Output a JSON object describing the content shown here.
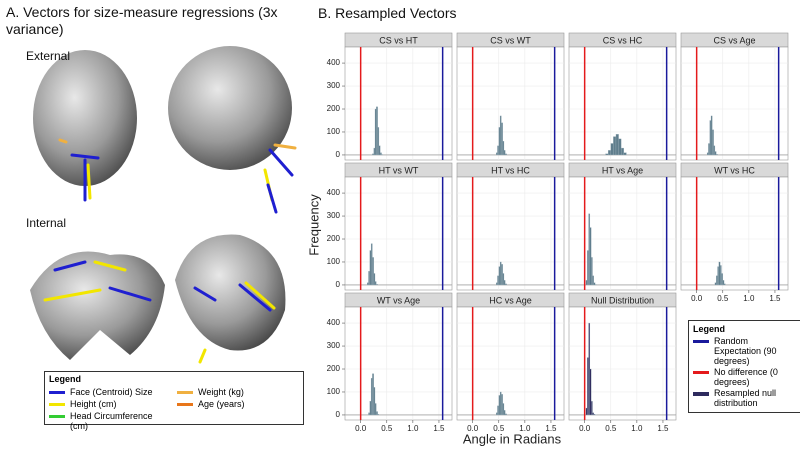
{
  "panel_a": {
    "title": "A. Vectors for size-measure regressions (3x variance)",
    "views": [
      "External",
      "Internal"
    ],
    "legend": {
      "title": "Legend",
      "items": [
        {
          "name": "Face (Centroid) Size",
          "color": "#1f1fd0"
        },
        {
          "name": "Height (cm)",
          "color": "#f2e600"
        },
        {
          "name": "Head Circumference (cm)",
          "color": "#33cc33"
        },
        {
          "name": "Weight (kg)",
          "color": "#f0b040"
        },
        {
          "name": "Age (years)",
          "color": "#e8761a"
        }
      ]
    }
  },
  "chart_data": {
    "type": "histogram",
    "title": "B. Resampled Vectors",
    "x_label": "Angle in Radians",
    "y_label": "Frequency",
    "xlim": [
      -0.3,
      1.75
    ],
    "ylim": [
      -22,
      470
    ],
    "xticks": [
      {
        "value": 0,
        "label": "0.0"
      },
      0.5,
      {
        "value": 1,
        "label": "1.0"
      },
      1.5
    ],
    "yticks": [
      0,
      100,
      200,
      300,
      400
    ],
    "grid": true,
    "legend": {
      "title": "Legend",
      "position": "bottom-right"
    },
    "reference_lines": [
      {
        "name": "Random Expectation (90 degrees)",
        "value": 1.5708,
        "color": "#1a1a9c"
      },
      {
        "name": "No difference (0 degrees)",
        "value": 0,
        "color": "#e41a1c"
      }
    ],
    "facets": [
      {
        "title": "CS vs HT",
        "color": "#5f7d8c",
        "bins": [
          0.225,
          0.25,
          0.275,
          0.3,
          0.325,
          0.35,
          0.375,
          0.4,
          0.425
        ],
        "counts": [
          5,
          30,
          200,
          210,
          120,
          40,
          10,
          2
        ]
      },
      {
        "title": "CS vs WT",
        "color": "#5f7d8c",
        "bins": [
          0.45,
          0.475,
          0.5,
          0.525,
          0.55,
          0.575,
          0.6,
          0.625,
          0.65
        ],
        "counts": [
          10,
          40,
          120,
          170,
          140,
          60,
          20,
          5
        ]
      },
      {
        "title": "CS vs HC",
        "color": "#5f7d8c",
        "bins": [
          0.4,
          0.45,
          0.5,
          0.55,
          0.6,
          0.65,
          0.7,
          0.75,
          0.8
        ],
        "counts": [
          5,
          20,
          50,
          80,
          90,
          70,
          30,
          10
        ]
      },
      {
        "title": "CS vs Age",
        "color": "#5f7d8c",
        "bins": [
          0.2,
          0.225,
          0.25,
          0.275,
          0.3,
          0.325,
          0.35,
          0.375,
          0.4
        ],
        "counts": [
          10,
          50,
          150,
          170,
          110,
          40,
          15,
          3
        ]
      },
      {
        "title": "HT vs WT",
        "color": "#5f7d8c",
        "bins": [
          0.125,
          0.15,
          0.175,
          0.2,
          0.225,
          0.25,
          0.275,
          0.3,
          0.325
        ],
        "counts": [
          10,
          60,
          150,
          180,
          120,
          50,
          15,
          3
        ]
      },
      {
        "title": "HT vs HC",
        "color": "#5f7d8c",
        "bins": [
          0.45,
          0.475,
          0.5,
          0.525,
          0.55,
          0.575,
          0.6,
          0.625,
          0.65
        ],
        "counts": [
          10,
          40,
          80,
          100,
          90,
          50,
          20,
          5
        ]
      },
      {
        "title": "HT vs Age",
        "color": "#5f7d8c",
        "bins": [
          0.025,
          0.05,
          0.075,
          0.1,
          0.125,
          0.15,
          0.175,
          0.2,
          0.225
        ],
        "counts": [
          20,
          150,
          310,
          250,
          120,
          40,
          10,
          2
        ]
      },
      {
        "title": "WT vs HC",
        "color": "#5f7d8c",
        "bins": [
          0.35,
          0.375,
          0.4,
          0.425,
          0.45,
          0.475,
          0.5,
          0.525,
          0.55
        ],
        "counts": [
          10,
          40,
          80,
          100,
          85,
          50,
          20,
          5
        ]
      },
      {
        "title": "WT vs Age",
        "color": "#5f7d8c",
        "bins": [
          0.15,
          0.175,
          0.2,
          0.225,
          0.25,
          0.275,
          0.3,
          0.325,
          0.35
        ],
        "counts": [
          10,
          60,
          160,
          180,
          120,
          50,
          15,
          3
        ]
      },
      {
        "title": "HC vs Age",
        "color": "#5f7d8c",
        "bins": [
          0.45,
          0.475,
          0.5,
          0.525,
          0.55,
          0.575,
          0.6,
          0.625,
          0.65
        ],
        "counts": [
          10,
          40,
          85,
          100,
          90,
          50,
          20,
          5
        ]
      },
      {
        "title": "Null Distribution",
        "name": "Resampled null distribution",
        "color": "#2e2a5e",
        "bins": [
          0.025,
          0.05,
          0.075,
          0.1,
          0.125,
          0.15,
          0.175,
          0.2,
          0.225
        ],
        "counts": [
          30,
          250,
          400,
          200,
          60,
          10,
          3,
          1
        ]
      }
    ]
  }
}
